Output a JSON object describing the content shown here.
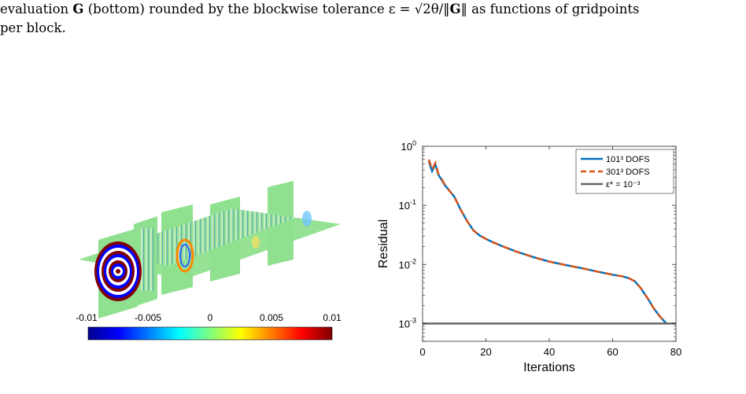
{
  "caption": {
    "line1_prefix": "evaluation",
    "line1_symbol": "G",
    "line1_mid": "(bottom) rounded by the blockwise tolerance ε = √2θ/‖",
    "line1_symbol2": "G",
    "line1_suffix": "‖ as functions of gridpoints",
    "line2": "per block."
  },
  "colorbar": {
    "ticks": [
      "-0.01",
      "-0.005",
      "0",
      "0.005",
      "0.01"
    ],
    "colormap": "jet",
    "colors": [
      "#00008f",
      "#0000ff",
      "#00ffff",
      "#7fff7f",
      "#ffff00",
      "#ff0000",
      "#800000"
    ],
    "field_background": "#8fe08f"
  },
  "chart_data": {
    "type": "line",
    "xlabel": "Iterations",
    "ylabel": "Residual",
    "xlim": [
      0,
      80
    ],
    "ylim": [
      0.0005,
      1
    ],
    "yscale": "log",
    "xticks": [
      "0",
      "20",
      "40",
      "60",
      "80"
    ],
    "yticks": [
      {
        "value": 1,
        "base": "10",
        "exp": "0"
      },
      {
        "value": 0.1,
        "base": "10",
        "exp": "-1"
      },
      {
        "value": 0.01,
        "base": "10",
        "exp": "-2"
      },
      {
        "value": 0.001,
        "base": "10",
        "exp": "-3"
      }
    ],
    "legend_position": "top-right",
    "series": [
      {
        "name": "101³ DOFS",
        "color": "#0072bd",
        "style": "solid",
        "x": [
          2,
          3,
          4,
          5,
          6,
          7,
          8,
          10,
          12,
          14,
          16,
          18,
          20,
          22,
          25,
          30,
          35,
          40,
          45,
          50,
          55,
          60,
          63,
          65,
          67,
          69,
          71,
          73,
          75,
          77
        ],
        "y": [
          0.55,
          0.38,
          0.5,
          0.33,
          0.27,
          0.22,
          0.19,
          0.14,
          0.085,
          0.055,
          0.038,
          0.031,
          0.027,
          0.024,
          0.0205,
          0.0162,
          0.0133,
          0.0112,
          0.0098,
          0.0087,
          0.0076,
          0.0067,
          0.0063,
          0.0059,
          0.0052,
          0.0039,
          0.0027,
          0.0018,
          0.0013,
          0.001
        ]
      },
      {
        "name": "301³ DOFS",
        "color": "#d95319",
        "style": "dashed",
        "x": [
          2,
          3,
          4,
          5,
          6,
          7,
          8,
          10,
          12,
          14,
          16,
          18,
          20,
          22,
          25,
          30,
          35,
          40,
          45,
          50,
          55,
          60,
          63,
          65,
          67,
          69,
          71,
          73,
          75,
          77
        ],
        "y": [
          0.6,
          0.4,
          0.52,
          0.34,
          0.28,
          0.225,
          0.19,
          0.14,
          0.085,
          0.055,
          0.038,
          0.031,
          0.027,
          0.024,
          0.0205,
          0.0162,
          0.0133,
          0.0112,
          0.0098,
          0.0087,
          0.0076,
          0.0067,
          0.0063,
          0.0059,
          0.0052,
          0.0039,
          0.0027,
          0.0018,
          0.0013,
          0.001
        ]
      },
      {
        "name": "ε* = 10⁻³",
        "color": "#666666",
        "style": "solid",
        "x": [
          0,
          80
        ],
        "y": [
          0.001,
          0.001
        ]
      }
    ]
  }
}
